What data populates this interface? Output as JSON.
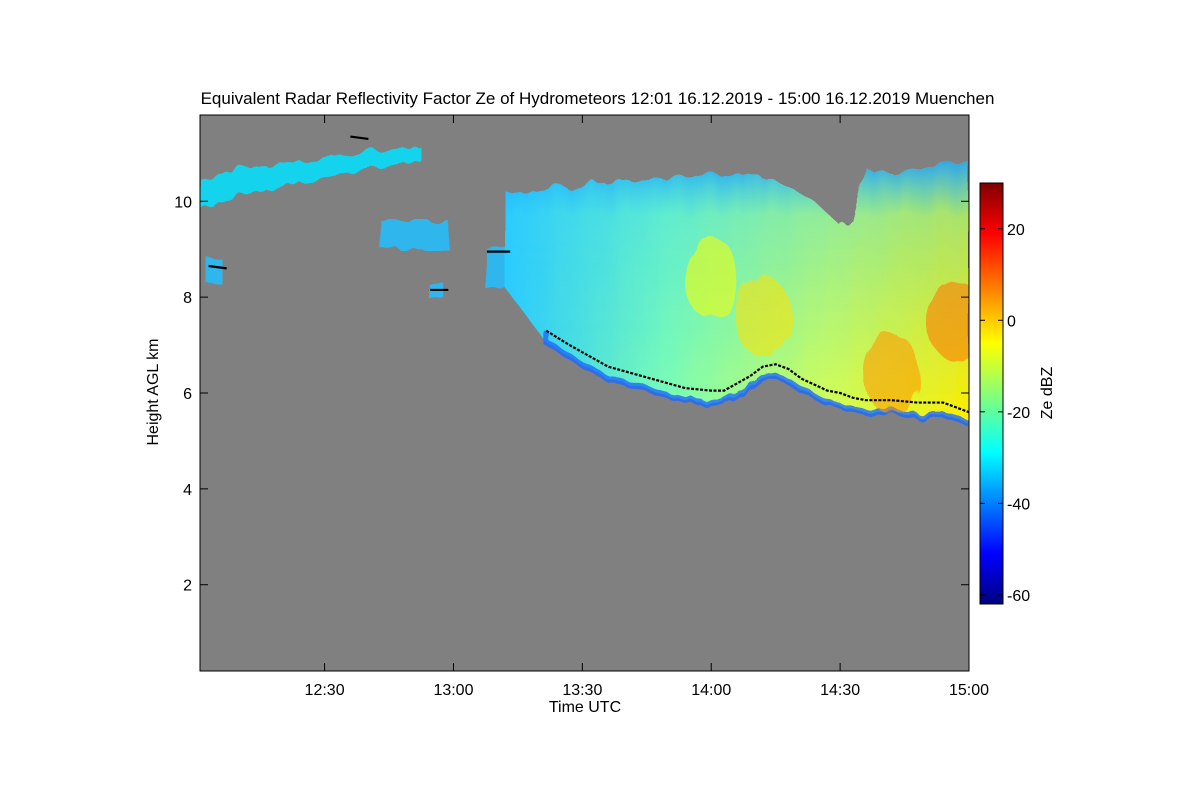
{
  "chart_data": {
    "type": "heatmap",
    "title": "Equivalent Radar Reflectivity Factor Ze of Hydrometeors    12:01 16.12.2019 - 15:00 16.12.2019 Muenchen",
    "xlabel": "Time UTC",
    "ylabel": "Height AGL km",
    "xlim": [
      12.0167,
      15.0
    ],
    "ylim": [
      0.2,
      11.8
    ],
    "x_ticks": [
      12.5,
      13.0,
      13.5,
      14.0,
      14.5,
      15.0
    ],
    "x_tick_labels": [
      "12:30",
      "13:00",
      "13:30",
      "14:00",
      "14:30",
      "15:00"
    ],
    "y_ticks": [
      2,
      4,
      6,
      8,
      10
    ],
    "y_tick_labels": [
      "2",
      "4",
      "6",
      "8",
      "10"
    ],
    "colorbar": {
      "label": "Ze dBZ",
      "range": [
        -62,
        30
      ],
      "ticks": [
        -60,
        -40,
        -20,
        0,
        20
      ],
      "tick_labels": [
        "-60",
        "-40",
        "-20",
        "0",
        "20"
      ],
      "colormap": "jet"
    },
    "background_color": "#808080",
    "cloud_base_km": {
      "x": [
        13.36,
        13.45,
        13.5,
        13.55,
        13.6,
        13.7,
        13.8,
        13.9,
        14.0,
        14.05,
        14.1,
        14.15,
        14.2,
        14.25,
        14.3,
        14.35,
        14.45,
        14.5,
        14.55,
        14.6,
        14.7,
        14.8,
        14.9,
        15.0
      ],
      "y": [
        7.3,
        7.0,
        6.85,
        6.7,
        6.55,
        6.4,
        6.25,
        6.1,
        6.05,
        6.05,
        6.2,
        6.35,
        6.55,
        6.6,
        6.5,
        6.3,
        6.05,
        6.0,
        5.9,
        5.85,
        5.85,
        5.8,
        5.8,
        5.6
      ]
    },
    "cloud_top_km": {
      "x": [
        13.2,
        13.3,
        13.4,
        13.5,
        13.6,
        13.7,
        13.8,
        13.9,
        14.0,
        14.1,
        14.2,
        14.3,
        14.4,
        14.5,
        14.55,
        14.6,
        14.7,
        14.8,
        14.9,
        15.0
      ],
      "y": [
        10.2,
        10.2,
        10.3,
        10.3,
        10.4,
        10.4,
        10.5,
        10.5,
        10.6,
        10.6,
        10.5,
        10.3,
        10.0,
        9.5,
        9.6,
        10.7,
        10.6,
        10.7,
        10.8,
        10.8
      ]
    },
    "core_reflectivity_dBZ": [
      {
        "x": 14.7,
        "y": 6.4,
        "value": 5
      },
      {
        "x": 14.95,
        "y": 7.5,
        "value": 8
      },
      {
        "x": 14.2,
        "y": 7.6,
        "value": -2
      },
      {
        "x": 14.0,
        "y": 8.4,
        "value": -5
      }
    ],
    "detected_cloud_layers_km": [
      {
        "x": [
          12.05,
          12.12
        ],
        "y": [
          8.65,
          8.6
        ]
      },
      {
        "x": [
          12.6,
          12.67
        ],
        "y": [
          11.35,
          11.3
        ]
      },
      {
        "x": [
          12.91,
          12.98
        ],
        "y": [
          8.15,
          8.15
        ]
      },
      {
        "x": [
          13.13,
          13.22
        ],
        "y": [
          8.95,
          8.95
        ]
      }
    ],
    "upper_cirrus": {
      "x": [
        12.02,
        12.25,
        12.45,
        12.7,
        12.87
      ],
      "y": [
        10.3,
        10.6,
        10.7,
        10.9,
        11.0
      ],
      "value": -30
    }
  }
}
